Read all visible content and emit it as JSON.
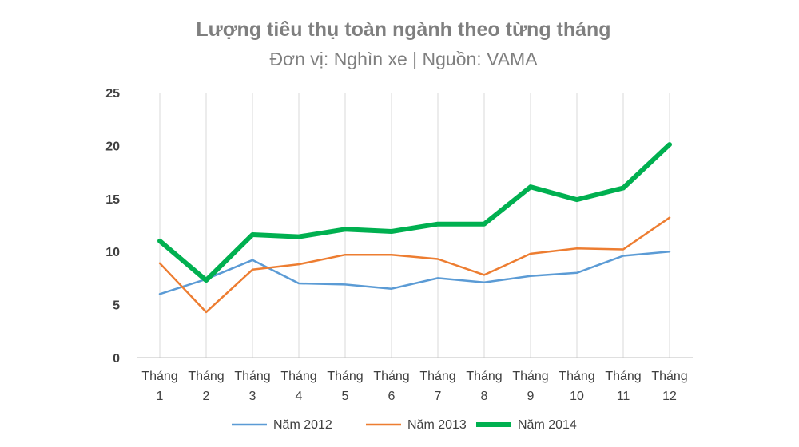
{
  "chart_data": {
    "type": "line",
    "title": "Lượng tiêu thụ toàn ngành theo từng tháng",
    "subtitle": "Đơn vị: Nghìn xe | Nguồn: VAMA",
    "categories": [
      [
        "Tháng",
        "1"
      ],
      [
        "Tháng",
        "2"
      ],
      [
        "Tháng",
        "3"
      ],
      [
        "Tháng",
        "4"
      ],
      [
        "Tháng",
        "5"
      ],
      [
        "Tháng",
        "6"
      ],
      [
        "Tháng",
        "7"
      ],
      [
        "Tháng",
        "8"
      ],
      [
        "Tháng",
        "9"
      ],
      [
        "Tháng",
        "10"
      ],
      [
        "Tháng",
        "11"
      ],
      [
        "Tháng",
        "12"
      ]
    ],
    "ylim": [
      0,
      25
    ],
    "yticks": [
      "0",
      "5",
      "10",
      "15",
      "20",
      "25"
    ],
    "grid": "vertical",
    "legend_position": "bottom",
    "series": [
      {
        "name": "Năm 2012",
        "color": "#5b9bd5",
        "width": "thin",
        "values": [
          6.0,
          7.4,
          9.2,
          7.0,
          6.9,
          6.5,
          7.5,
          7.1,
          7.7,
          8.0,
          9.6,
          10.0
        ]
      },
      {
        "name": "Năm 2013",
        "color": "#ed7d31",
        "width": "thin",
        "values": [
          8.9,
          4.3,
          8.3,
          8.8,
          9.7,
          9.7,
          9.3,
          7.8,
          9.8,
          10.3,
          10.2,
          13.2
        ]
      },
      {
        "name": "Năm 2014",
        "color": "#00b050",
        "width": "thick",
        "values": [
          11.0,
          7.3,
          11.6,
          11.4,
          12.1,
          11.9,
          12.6,
          12.6,
          16.1,
          14.9,
          16.0,
          20.1
        ]
      }
    ]
  }
}
